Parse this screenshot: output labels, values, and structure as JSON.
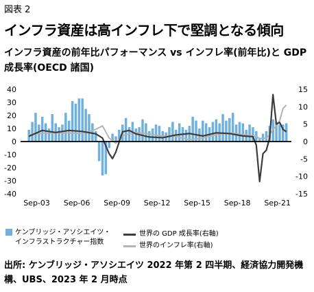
{
  "figure_no": "図表 2",
  "headline": "インフラ資産は高インフレ下で堅調となる傾向",
  "chart_title": "インフラ資産の前年比パフォーマンス vs インフレ率(前年比)と GDP 成長率(OECD 諸国)",
  "legend": {
    "bar": "ケンブリッジ・アソシエイツ・インフラストラクチャー指数",
    "gdp": "世界の GDP 成長率(右軸)",
    "cpi": "世界のインフレ率(右軸)"
  },
  "source": "出所: ケンブリッジ・アソシエイツ 2022 年第 2 四半期、経済協力開発機構、UBS、2023 年 2 月時点",
  "colors": {
    "bar": "#6fb0de",
    "gdp": "#3b3b3b",
    "cpi": "#b3b3b3",
    "zero": "#000000"
  },
  "chart_data": {
    "type": "bar",
    "title": "インフラ資産の前年比パフォーマンス vs インフレ率(前年比)と GDP 成長率(OECD 諸国)",
    "x_ticks": [
      "Sep-03",
      "Sep-06",
      "Sep-09",
      "Sep-12",
      "Sep-15",
      "Sep-18",
      "Sep-21"
    ],
    "left_axis": {
      "ylim": [
        -40,
        40
      ],
      "ticks": [
        -40,
        -30,
        -20,
        -10,
        0,
        10,
        20,
        30,
        40
      ]
    },
    "right_axis": {
      "ylim": [
        -15,
        15
      ],
      "ticks": [
        -15,
        -10,
        -5,
        0,
        5,
        10,
        15
      ]
    },
    "grid": false,
    "legend_position": "bottom",
    "series": [
      {
        "name": "ケンブリッジ・アソシエイツ・インフラストラクチャー指数",
        "type": "bar",
        "axis": "left",
        "x": [
          "2003Q1",
          "2003Q2",
          "2003Q3",
          "2003Q4",
          "2004Q1",
          "2004Q2",
          "2004Q3",
          "2004Q4",
          "2005Q1",
          "2005Q2",
          "2005Q3",
          "2005Q4",
          "2006Q1",
          "2006Q2",
          "2006Q3",
          "2006Q4",
          "2007Q1",
          "2007Q2",
          "2007Q3",
          "2007Q4",
          "2008Q1",
          "2008Q2",
          "2008Q3",
          "2008Q4",
          "2009Q1",
          "2009Q2",
          "2009Q3",
          "2009Q4",
          "2010Q1",
          "2010Q2",
          "2010Q3",
          "2010Q4",
          "2011Q1",
          "2011Q2",
          "2011Q3",
          "2011Q4",
          "2012Q1",
          "2012Q2",
          "2012Q3",
          "2012Q4",
          "2013Q1",
          "2013Q2",
          "2013Q3",
          "2013Q4",
          "2014Q1",
          "2014Q2",
          "2014Q3",
          "2014Q4",
          "2015Q1",
          "2015Q2",
          "2015Q3",
          "2015Q4",
          "2016Q1",
          "2016Q2",
          "2016Q3",
          "2016Q4",
          "2017Q1",
          "2017Q2",
          "2017Q3",
          "2017Q4",
          "2018Q1",
          "2018Q2",
          "2018Q3",
          "2018Q4",
          "2019Q1",
          "2019Q2",
          "2019Q3",
          "2019Q4",
          "2020Q1",
          "2020Q2",
          "2020Q3",
          "2020Q4",
          "2021Q1",
          "2021Q2",
          "2021Q3",
          "2021Q4",
          "2022Q1",
          "2022Q2"
        ],
        "values": [
          9,
          15,
          22,
          13,
          19,
          14,
          10,
          21,
          14,
          11,
          13,
          22,
          16,
          31,
          29,
          33,
          33,
          25,
          21,
          14,
          8,
          -15,
          -26,
          -25,
          -5,
          6,
          4,
          9,
          13,
          18,
          11,
          15,
          10,
          11,
          17,
          14,
          8,
          10,
          13,
          12,
          8,
          7,
          11,
          15,
          9,
          14,
          11,
          9,
          12,
          19,
          16,
          10,
          16,
          14,
          11,
          15,
          17,
          14,
          21,
          16,
          18,
          22,
          13,
          15,
          14,
          9,
          13,
          11,
          8,
          3,
          6,
          8,
          12,
          17,
          15,
          13,
          13,
          14
        ]
      },
      {
        "name": "世界の GDP 成長率(右軸)",
        "type": "line",
        "axis": "right",
        "x": [
          "2003Q1",
          "2004Q1",
          "2005Q1",
          "2006Q1",
          "2007Q1",
          "2008Q1",
          "2008Q3",
          "2009Q1",
          "2009Q2",
          "2009Q3",
          "2010Q1",
          "2010Q3",
          "2011Q1",
          "2012Q1",
          "2013Q1",
          "2014Q1",
          "2015Q1",
          "2016Q1",
          "2017Q1",
          "2018Q1",
          "2019Q1",
          "2019Q4",
          "2020Q1",
          "2020Q2",
          "2020Q3",
          "2020Q4",
          "2021Q1",
          "2021Q2",
          "2021Q3",
          "2021Q4",
          "2022Q1",
          "2022Q2"
        ],
        "values": [
          1.5,
          3.2,
          2.6,
          3.2,
          2.9,
          2.2,
          1.0,
          -3.5,
          -4.9,
          -3.0,
          2.8,
          3.2,
          2.2,
          1.3,
          1.1,
          1.9,
          2.3,
          1.6,
          2.5,
          2.3,
          1.6,
          1.4,
          -1.0,
          -11.5,
          -3.5,
          -2.5,
          1.0,
          13.5,
          5.0,
          5.5,
          3.5,
          2.8
        ]
      },
      {
        "name": "世界のインフレ率(右軸)",
        "type": "line",
        "axis": "right",
        "x": [
          "2003Q1",
          "2004Q1",
          "2005Q1",
          "2006Q1",
          "2007Q1",
          "2008Q1",
          "2008Q3",
          "2009Q1",
          "2009Q3",
          "2010Q1",
          "2011Q1",
          "2012Q1",
          "2013Q1",
          "2014Q1",
          "2015Q1",
          "2016Q1",
          "2017Q1",
          "2018Q1",
          "2019Q1",
          "2020Q1",
          "2020Q2",
          "2020Q4",
          "2021Q1",
          "2021Q2",
          "2021Q3",
          "2021Q4",
          "2022Q1",
          "2022Q2"
        ],
        "values": [
          2.0,
          2.4,
          2.5,
          2.5,
          2.3,
          3.5,
          4.5,
          1.0,
          -0.5,
          1.7,
          2.6,
          2.2,
          1.5,
          1.5,
          0.5,
          1.0,
          2.0,
          2.5,
          2.0,
          1.5,
          0.8,
          1.0,
          2.0,
          3.5,
          4.5,
          6.0,
          9.5,
          10.5
        ]
      }
    ]
  }
}
